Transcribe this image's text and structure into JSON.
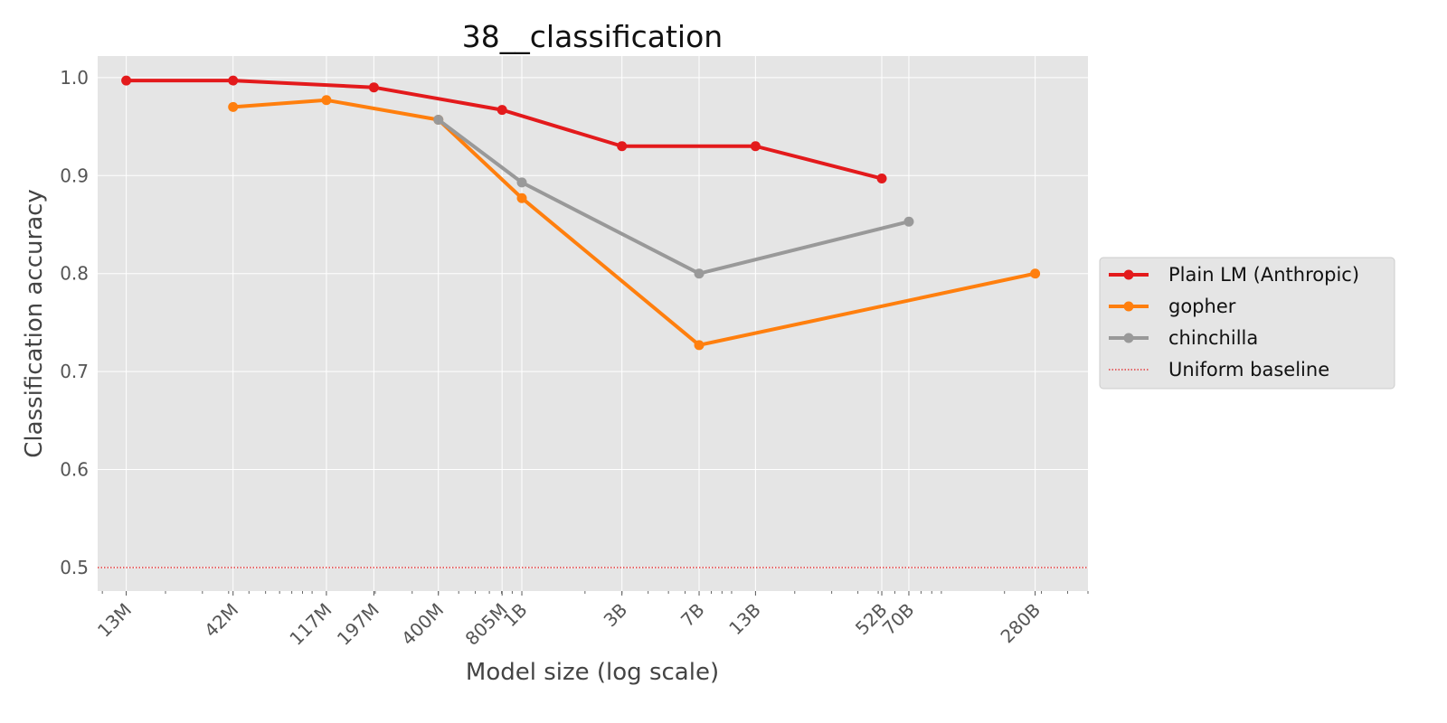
{
  "chart_data": {
    "type": "line",
    "title": "38__classification",
    "xlabel": "Model size (log scale)",
    "ylabel": "Classification accuracy",
    "x_scale": "log",
    "xlim": [
      9500000,
      500000000000
    ],
    "ylim": [
      0.476,
      1.022
    ],
    "y_ticks": [
      0.5,
      0.6,
      0.7,
      0.8,
      0.9,
      1.0
    ],
    "y_tick_labels": [
      "0.5",
      "0.6",
      "0.7",
      "0.8",
      "0.9",
      "1.0"
    ],
    "x_ticks": [
      13000000,
      42000000,
      117000000,
      197000000,
      400000000,
      805000000,
      1000000000,
      3000000000,
      7000000000,
      13000000000,
      52000000000,
      70000000000,
      280000000000
    ],
    "x_tick_labels": [
      "13M",
      "42M",
      "117M",
      "197M",
      "400M",
      "805M",
      "1B",
      "3B",
      "7B",
      "13B",
      "52B",
      "70B",
      "280B"
    ],
    "grid": true,
    "legend_position": "right",
    "series": [
      {
        "name": "Plain LM (Anthropic)",
        "color": "#e31a1c",
        "x": [
          13000000,
          42000000,
          197000000,
          805000000,
          3000000000,
          13000000000,
          52000000000
        ],
        "y": [
          0.997,
          0.997,
          0.99,
          0.967,
          0.93,
          0.93,
          0.897
        ]
      },
      {
        "name": "gopher",
        "color": "#ff7f0e",
        "x": [
          42000000,
          117000000,
          400000000,
          1000000000,
          7000000000,
          280000000000
        ],
        "y": [
          0.97,
          0.977,
          0.957,
          0.877,
          0.727,
          0.8
        ]
      },
      {
        "name": "chinchilla",
        "color": "#999999",
        "x": [
          400000000,
          1000000000,
          7000000000,
          70000000000
        ],
        "y": [
          0.957,
          0.893,
          0.8,
          0.853
        ]
      }
    ],
    "baseline": {
      "name": "Uniform baseline",
      "y": 0.5,
      "color": "#e31a1c",
      "style": "dotted"
    }
  }
}
